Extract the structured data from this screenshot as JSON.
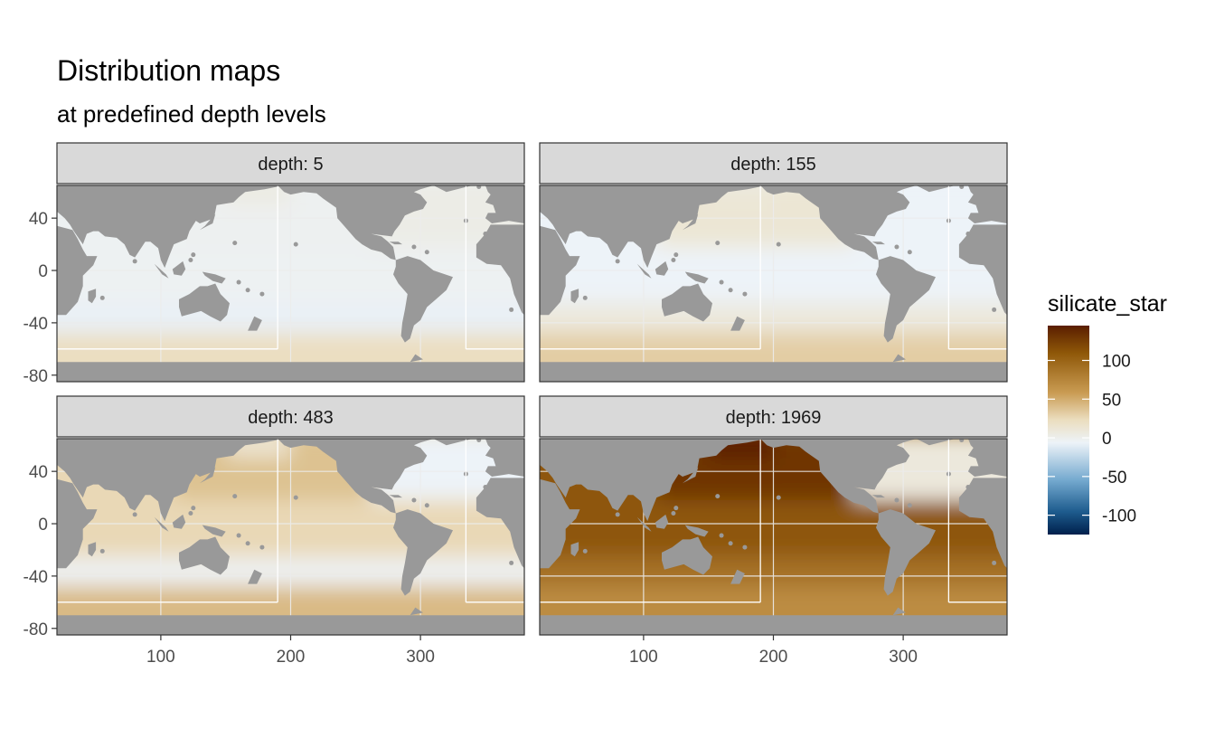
{
  "chart_data": {
    "type": "heatmap",
    "title": "Distribution maps",
    "subtitle": "at predefined depth levels",
    "variable": "silicate_star",
    "facet_variable": "depth",
    "facets": [
      {
        "label": "depth: 5",
        "depth": 5,
        "southern_ocean": 22,
        "mid_south": -8,
        "tropics": -3,
        "north_pacific": -2,
        "north_atlantic": 3,
        "arctic": 5
      },
      {
        "label": "depth: 155",
        "depth": 155,
        "southern_ocean": 32,
        "mid_south": 8,
        "tropics": -6,
        "north_pacific": 12,
        "north_atlantic": -6,
        "arctic": 10
      },
      {
        "label": "depth: 483",
        "depth": 483,
        "southern_ocean": 42,
        "mid_south": -2,
        "tropics": 26,
        "north_pacific": 38,
        "north_atlantic": -6,
        "arctic": 15
      },
      {
        "label": "depth: 1969",
        "depth": 1969,
        "southern_ocean": 70,
        "mid_south": 90,
        "tropics": 110,
        "north_pacific": 130,
        "north_atlantic": 8,
        "arctic": 145
      }
    ],
    "x_ticks": [
      "100",
      "200",
      "300"
    ],
    "y_ticks": [
      "40",
      "0",
      "-40",
      "-80"
    ],
    "xlim": [
      20,
      380
    ],
    "ylim": [
      -85,
      65
    ],
    "color_scale": {
      "limits": [
        -125,
        145
      ],
      "breaks": [
        "100",
        "50",
        "0",
        "-50",
        "-100"
      ],
      "colors": [
        "#00204C",
        "#1E5C8E",
        "#74A9CF",
        "#EDF3F8",
        "#EBDDBE",
        "#C99B52",
        "#8E5708",
        "#5A1E00"
      ]
    },
    "land_color": "#999999",
    "grid": true,
    "legend_position": "right"
  }
}
